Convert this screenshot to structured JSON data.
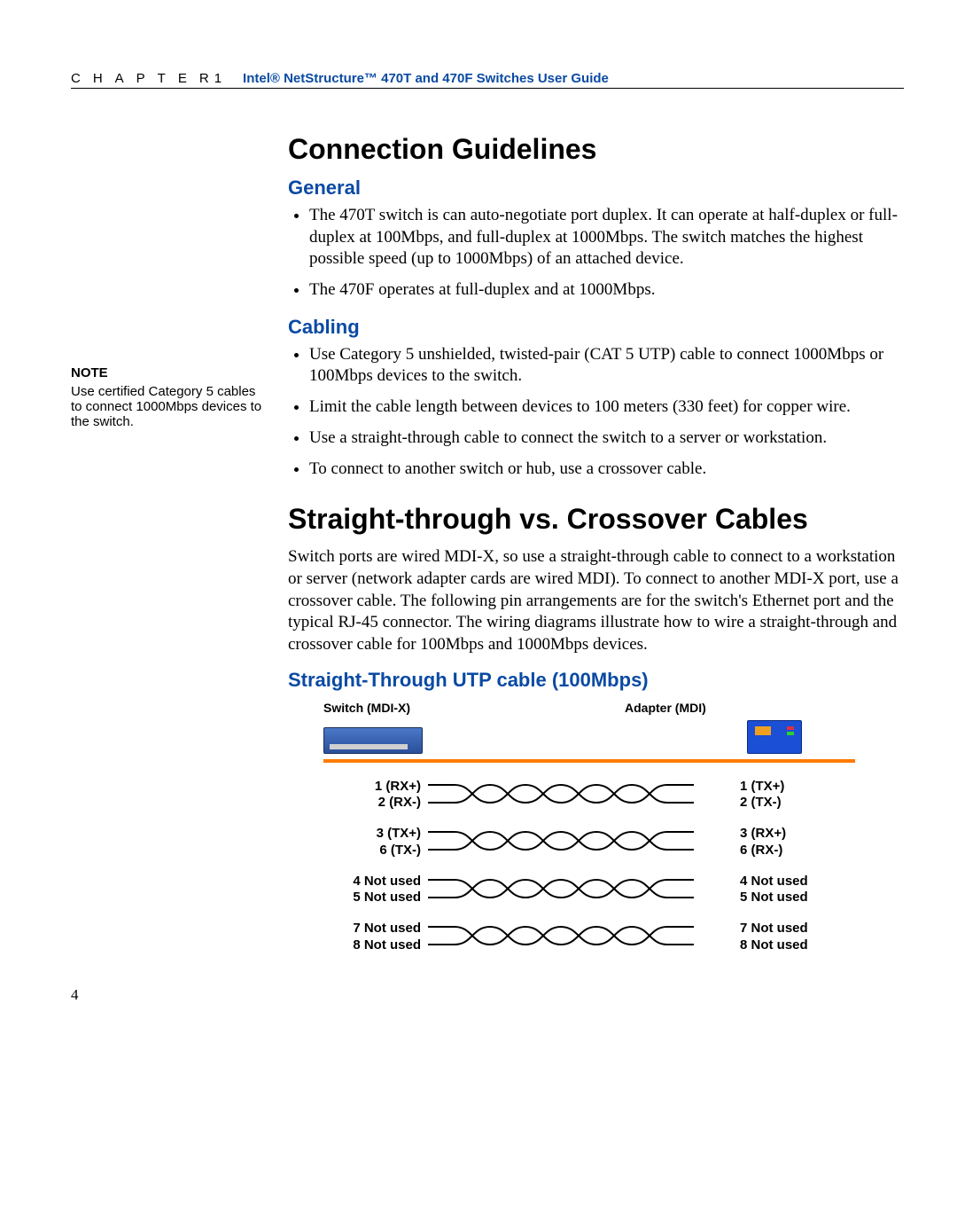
{
  "header": {
    "chapter_label": "CHAPTER",
    "chapter_num": "1",
    "guide_title": "Intel® NetStructure™ 470T and 470F Switches User Guide"
  },
  "margin_note": {
    "heading": "NOTE",
    "text": "Use certified Category 5 cables to connect 1000Mbps devices to the switch."
  },
  "section1": {
    "title": "Connection Guidelines",
    "sub_general": "General",
    "general_items": [
      "The 470T switch is can auto-negotiate port duplex. It can operate at half-duplex or full-duplex at 100Mbps, and full-duplex at 1000Mbps. The switch matches the highest possible speed (up to 1000Mbps) of an attached device.",
      "The 470F operates at full-duplex and at 1000Mbps."
    ],
    "sub_cabling": "Cabling",
    "cabling_items": [
      "Use Category 5 unshielded, twisted-pair (CAT 5 UTP) cable to connect 1000Mbps or 100Mbps devices to the switch.",
      "Limit the cable length between devices to 100 meters (330 feet) for copper wire.",
      "Use a straight-through cable to connect the switch to a server or workstation.",
      "To connect to another switch or hub, use a crossover cable."
    ]
  },
  "section2": {
    "title": "Straight-through vs. Crossover Cables",
    "body": "Switch ports are wired MDI-X, so use a straight-through cable to connect to a workstation or server (network adapter cards are wired MDI). To connect to another MDI-X port, use a crossover cable. The following pin arrangements are for the switch's Ethernet port and the typical RJ-45 connector. The wiring diagrams illustrate how to wire a straight-through and crossover cable for 100Mbps and 1000Mbps devices.",
    "diagram_title": "Straight-Through UTP cable (100Mbps)"
  },
  "diagram": {
    "left_device": "Switch (MDI-X)",
    "right_device": "Adapter (MDI)",
    "wire_color": "#000000",
    "bar_color": "#ff7a00",
    "pairs": [
      {
        "l1": "1 (RX+)",
        "l2": "2 (RX-)",
        "r1": "1 (TX+)",
        "r2": "2 (TX-)"
      },
      {
        "l1": "3 (TX+)",
        "l2": "6 (TX-)",
        "r1": "3 (RX+)",
        "r2": "6 (RX-)"
      },
      {
        "l1": "4 Not used",
        "l2": "5 Not used",
        "r1": "4 Not used",
        "r2": "5 Not used"
      },
      {
        "l1": "7 Not used",
        "l2": "8 Not used",
        "r1": "7 Not used",
        "r2": "8 Not used"
      }
    ]
  },
  "page_number": "4",
  "colors": {
    "accent": "#0a4aa3",
    "text": "#000000"
  }
}
